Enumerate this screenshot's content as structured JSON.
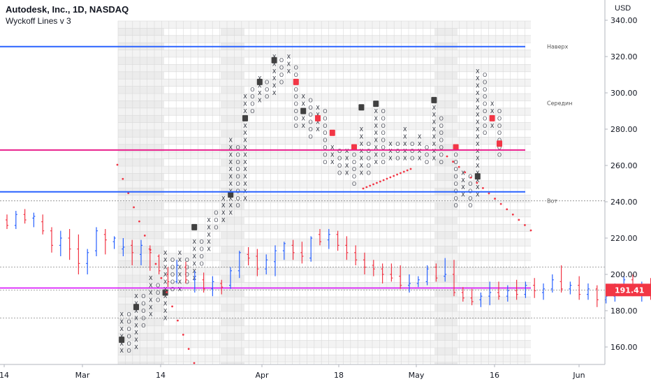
{
  "header": {
    "symbol_title": "Autodesk, Inc., 1D, NASDAQ",
    "indicator_title": "Wyckoff Lines v 3",
    "currency": "USD"
  },
  "colors": {
    "up": "#2962ff",
    "down": "#f23645",
    "blue_line": "#2962ff",
    "pink_line": "#e91e8c",
    "magenta_line": "#d500f9",
    "price_badge": "#f23645",
    "grid_dark": "#d9d9d9",
    "grid_light": "#efefef"
  },
  "chart_data": {
    "type": "candlestick + point-and-figure overlay",
    "ylim": [
      148,
      342
    ],
    "y_ticks": [
      160,
      180,
      200,
      220,
      240,
      260,
      280,
      300,
      320,
      340
    ],
    "y_tick_labels": [
      "160.00",
      "180.00",
      "200.00",
      "220.00",
      "240.00",
      "260.00",
      "280.00",
      "300.00",
      "320.00",
      "340.00"
    ],
    "x_ticks": [
      {
        "label": "14",
        "date": "2022-02-14"
      },
      {
        "label": "Mar",
        "date": "2022-03-01"
      },
      {
        "label": "14",
        "date": "2022-03-14"
      },
      {
        "label": "Apr",
        "date": "2022-04-01"
      },
      {
        "label": "18",
        "date": "2022-04-18"
      },
      {
        "label": "May",
        "date": "2022-05-02"
      },
      {
        "label": "16",
        "date": "2022-05-16"
      },
      {
        "label": "Jun",
        "date": "2022-06-01"
      }
    ],
    "last_price": "191.41",
    "horizontal_lines": [
      {
        "label": "Наверх",
        "price": 325.5,
        "color": "blue"
      },
      {
        "label": "",
        "price": 268.5,
        "color": "pink"
      },
      {
        "label": "",
        "price": 245.5,
        "color": "blue"
      },
      {
        "label": "",
        "price": 192.5,
        "color": "magenta"
      },
      {
        "label": "Середин",
        "price": 294.5,
        "color": "none"
      },
      {
        "label": "Вот",
        "price": 240.5,
        "color": "dotted"
      }
    ],
    "dotted_levels": [
      240.5,
      204,
      191.4,
      176
    ],
    "candles": [
      [
        -55,
        230,
        233,
        225,
        227
      ],
      [
        -51,
        227,
        235,
        225,
        233
      ],
      [
        -47,
        233,
        236,
        228,
        230
      ],
      [
        -43,
        231,
        234,
        226,
        232
      ],
      [
        -39,
        229,
        233,
        222,
        224
      ],
      [
        -35,
        224,
        226,
        212,
        216
      ],
      [
        -31,
        216,
        224,
        210,
        220
      ],
      [
        -27,
        220,
        225,
        208,
        214
      ],
      [
        -23,
        214,
        222,
        200,
        206
      ],
      [
        -19,
        206,
        214,
        200,
        212
      ],
      [
        -15,
        213,
        226,
        210,
        224
      ],
      [
        -11,
        222,
        225,
        211,
        219
      ],
      [
        -7,
        218,
        221,
        214,
        220
      ],
      [
        -3,
        214,
        220,
        210,
        215
      ],
      [
        1,
        216,
        219,
        205,
        212
      ],
      [
        5,
        211,
        219,
        205,
        216
      ],
      [
        9,
        214,
        216,
        202,
        212
      ],
      [
        13,
        210,
        211,
        200,
        202
      ],
      [
        17,
        200,
        204,
        193,
        196
      ],
      [
        21,
        196,
        208,
        195,
        205
      ],
      [
        25,
        204,
        207,
        195,
        197
      ],
      [
        29,
        197,
        202,
        190,
        199
      ],
      [
        33,
        197,
        201,
        190,
        192
      ],
      [
        37,
        192,
        199,
        188,
        196
      ],
      [
        41,
        195,
        197,
        189,
        193
      ],
      [
        45,
        194,
        204,
        192,
        202
      ],
      [
        49,
        202,
        213,
        198,
        212
      ],
      [
        53,
        211,
        215,
        205,
        209
      ],
      [
        57,
        210,
        214,
        199,
        203
      ],
      [
        61,
        203,
        211,
        200,
        208
      ],
      [
        65,
        207,
        216,
        199,
        213
      ],
      [
        69,
        213,
        218,
        208,
        217
      ],
      [
        73,
        216,
        219,
        208,
        212
      ],
      [
        77,
        212,
        218,
        206,
        210
      ],
      [
        81,
        209,
        221,
        207,
        220
      ],
      [
        85,
        222,
        225,
        216,
        218
      ],
      [
        89,
        219,
        225,
        214,
        222
      ],
      [
        93,
        222,
        224,
        213,
        216
      ],
      [
        97,
        216,
        221,
        208,
        212
      ],
      [
        101,
        212,
        216,
        205,
        208
      ],
      [
        105,
        208,
        212,
        200,
        204
      ],
      [
        109,
        205,
        208,
        199,
        203
      ],
      [
        113,
        203,
        206,
        195,
        200
      ],
      [
        117,
        200,
        206,
        196,
        198
      ],
      [
        121,
        199,
        205,
        192,
        194
      ],
      [
        125,
        194,
        200,
        190,
        195
      ],
      [
        129,
        195,
        199,
        193,
        197
      ],
      [
        133,
        196,
        205,
        194,
        203
      ],
      [
        137,
        204,
        206,
        196,
        198
      ],
      [
        141,
        199,
        209,
        196,
        200
      ],
      [
        145,
        200,
        208,
        188,
        190
      ],
      [
        149,
        190,
        193,
        185,
        187
      ],
      [
        153,
        187,
        192,
        183,
        185
      ],
      [
        157,
        186,
        190,
        182,
        188
      ],
      [
        161,
        188,
        196,
        183,
        190
      ],
      [
        165,
        190,
        196,
        186,
        188
      ],
      [
        169,
        188,
        194,
        185,
        191
      ],
      [
        173,
        191,
        197,
        186,
        189
      ],
      [
        177,
        189,
        196,
        187,
        194
      ],
      [
        181,
        194,
        198,
        187,
        191
      ],
      [
        185,
        190,
        195,
        186,
        192
      ],
      [
        189,
        192,
        200,
        190,
        197
      ],
      [
        193,
        196,
        205,
        190,
        192
      ],
      [
        197,
        192,
        196,
        189,
        194
      ],
      [
        201,
        194,
        199,
        186,
        189
      ],
      [
        205,
        189,
        195,
        186,
        192
      ],
      [
        209,
        192,
        194,
        182,
        186
      ],
      [
        213,
        186,
        191,
        184,
        188
      ],
      [
        217,
        188,
        195,
        185,
        192
      ],
      [
        221,
        192,
        199,
        191,
        197
      ],
      [
        225,
        197,
        200,
        188,
        190
      ],
      [
        229,
        190,
        196,
        185,
        194
      ],
      [
        233,
        194,
        198,
        186,
        191
      ],
      [
        237,
        191,
        197,
        186,
        193
      ],
      [
        241,
        193,
        199,
        188,
        191
      ]
    ],
    "pnf_note": "Point-and-figure box columns (X / O) with box size 4 overlaid on the price chart; marked boxes use labels such as 1-9, A, B, C."
  }
}
